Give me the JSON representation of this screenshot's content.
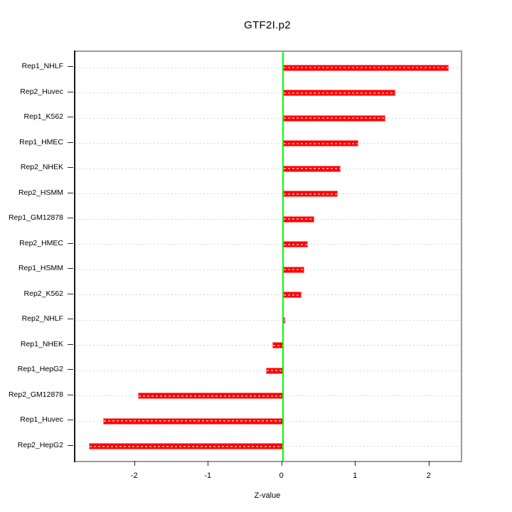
{
  "chart_data": {
    "type": "bar",
    "orientation": "horizontal",
    "title": "GTF2I.p2",
    "xlabel": "Z-value",
    "ylabel": "",
    "categories": [
      "Rep1_NHLF",
      "Rep2_Huvec",
      "Rep1_K562",
      "Rep1_HMEC",
      "Rep2_NHEK",
      "Rep2_HSMM",
      "Rep1_GM12878",
      "Rep2_HMEC",
      "Rep1_HSMM",
      "Rep2_K562",
      "Rep2_NHLF",
      "Rep1_NHEK",
      "Rep1_HepG2",
      "Rep2_GM12878",
      "Rep1_Huvec",
      "Rep2_HepG2"
    ],
    "values": [
      2.25,
      1.53,
      1.39,
      1.03,
      0.79,
      0.75,
      0.43,
      0.34,
      0.29,
      0.25,
      0.03,
      -0.14,
      -0.23,
      -1.97,
      -2.44,
      -2.63
    ],
    "x_ticks": [
      -2,
      -1,
      0,
      1,
      2
    ],
    "x_tick_labels": [
      "-2",
      "-1",
      "0",
      "1",
      "2"
    ],
    "xlim": [
      -2.82,
      2.44
    ],
    "grid": "horizontal dotted per category",
    "legend_position": "none",
    "colors": {
      "bar": "#ff0000",
      "bar_edge": "#ff8080",
      "zero_line": "#00ff00",
      "gridline": "#d8d8d8",
      "box_border": "#9b9b9b",
      "axis": "#1a1a1a",
      "text": "#000000",
      "background": "#ffffff"
    }
  }
}
